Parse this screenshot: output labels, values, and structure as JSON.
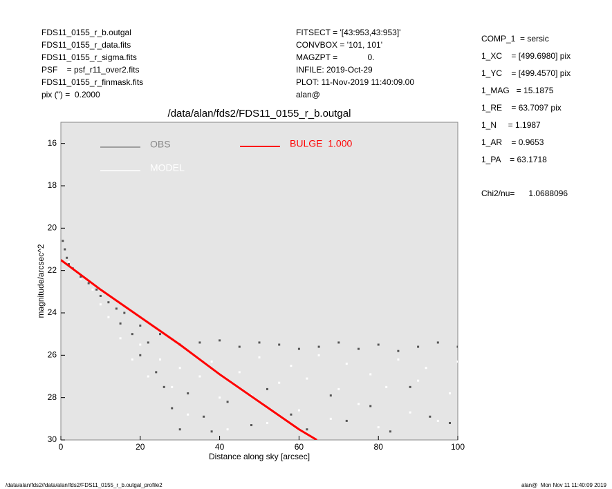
{
  "header": {
    "left": [
      "FDS11_0155_r_b.outgal",
      "FDS11_0155_r_data.fits",
      "FDS11_0155_r_sigma.fits",
      "PSF    = psf_r11_over2.fits",
      "FDS11_0155_r_finmask.fits",
      "pix (\") =  0.2000"
    ],
    "middle": [
      "FITSECT = '[43:953,43:953]'",
      "CONVBOX = '101, 101'",
      "MAGZPT =             0.",
      "INFILE: 2019-Oct-29",
      "PLOT: 11-Nov-2019 11:40:09.00",
      "alan@"
    ],
    "right": [
      "COMP_1  = sersic",
      "1_XC    = [499.6980] pix",
      "1_YC    = [499.4570] pix",
      "1_MAG   = 15.1875",
      "1_RE    = 63.7097 pix",
      "1_N     = 1.1987",
      "1_AR    = 0.9653",
      "1_PA    = 63.1718"
    ],
    "chi2": "Chi2/nu=      1.0688096"
  },
  "footer": {
    "left": "/data/alan/fds2//data/alan/fds2/FDS11_0155_r_b.outgal_profile2",
    "right": "alan@  Mon Nov 11 11:40:09 2019"
  },
  "chart_data": {
    "type": "scatter",
    "title": "/data/alan/fds2/FDS11_0155_r_b.outgal",
    "x_label": "Distance along sky [arcsec]",
    "y_label": "magnitude/arcsec^2",
    "xlim": [
      0,
      100
    ],
    "xticks": [
      0,
      20,
      40,
      60,
      80,
      100
    ],
    "ylim": [
      30,
      15
    ],
    "yticks": [
      16,
      18,
      20,
      22,
      24,
      26,
      28,
      30
    ],
    "series": [
      {
        "name": "OBS",
        "color": "#555555",
        "mode": "points",
        "x": [
          0.5,
          1,
          1.5,
          2,
          3,
          5,
          7,
          9,
          10,
          12,
          14,
          15,
          16,
          18,
          20,
          20,
          22,
          24,
          25,
          26,
          28,
          30,
          30,
          32,
          35,
          36,
          38,
          40,
          42,
          45,
          48,
          50,
          52,
          55,
          58,
          60,
          62,
          65,
          68,
          70,
          72,
          75,
          78,
          80,
          83,
          85,
          88,
          90,
          93,
          95,
          98,
          100
        ],
        "values": [
          20.6,
          21.0,
          21.4,
          21.7,
          21.9,
          22.3,
          22.6,
          22.9,
          23.2,
          23.5,
          23.8,
          24.5,
          24.0,
          25.0,
          24.6,
          26.0,
          25.4,
          26.8,
          25.0,
          27.5,
          28.5,
          29.5,
          25.5,
          27.8,
          25.4,
          28.9,
          29.6,
          25.3,
          28.2,
          25.6,
          29.3,
          25.4,
          27.6,
          25.5,
          28.8,
          25.7,
          29.5,
          25.6,
          27.9,
          25.4,
          29.1,
          25.7,
          28.4,
          25.5,
          29.6,
          25.8,
          27.5,
          25.6,
          28.9,
          25.4,
          29.2,
          25.6
        ]
      },
      {
        "name": "MODEL",
        "color": "#ffffff",
        "mode": "points",
        "x": [
          2,
          5,
          8,
          10,
          12,
          15,
          18,
          20,
          22,
          25,
          28,
          30,
          32,
          35,
          38,
          40,
          42,
          45,
          48,
          50,
          52,
          55,
          58,
          60,
          62,
          65,
          68,
          70,
          72,
          75,
          78,
          80,
          82,
          85,
          88,
          90,
          92,
          95,
          98,
          100
        ],
        "values": [
          21.6,
          22.4,
          22.9,
          23.6,
          24.2,
          25.2,
          26.2,
          25.5,
          27.0,
          26.2,
          27.5,
          26.6,
          28.8,
          27.0,
          26.3,
          28.0,
          29.5,
          26.8,
          27.9,
          26.1,
          29.2,
          27.3,
          26.5,
          28.6,
          27.1,
          26.0,
          29.0,
          27.6,
          26.4,
          28.3,
          26.9,
          29.4,
          27.5,
          26.2,
          28.7,
          27.2,
          26.6,
          29.1,
          27.8,
          26.3
        ]
      },
      {
        "name": "BULGE  1.000",
        "color": "#ff0000",
        "mode": "line",
        "x": [
          0,
          5,
          10,
          20,
          30,
          40,
          50,
          60,
          64.5
        ],
        "values": [
          21.5,
          22.2,
          22.9,
          24.2,
          25.5,
          26.9,
          28.2,
          29.5,
          30
        ]
      }
    ]
  }
}
